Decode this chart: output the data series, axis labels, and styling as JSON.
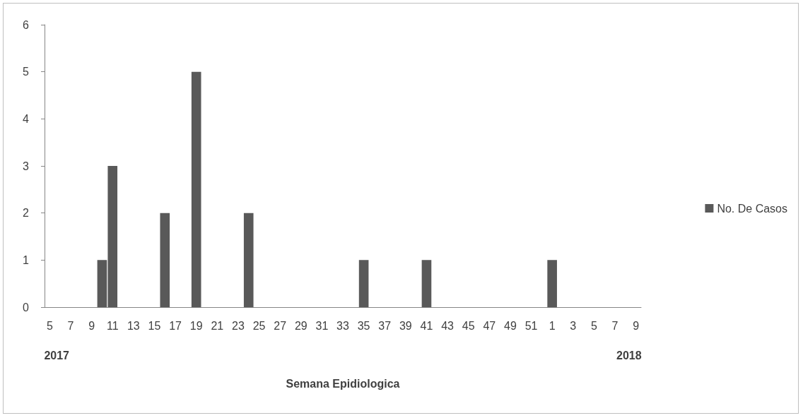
{
  "chart_data": {
    "type": "bar",
    "xlabel": "Semana Epidiologica",
    "categories": [
      "5",
      null,
      "7",
      null,
      "9",
      null,
      "11",
      null,
      "13",
      null,
      "15",
      null,
      "17",
      null,
      "19",
      null,
      "21",
      null,
      "23",
      null,
      "25",
      null,
      "27",
      null,
      "29",
      null,
      "31",
      null,
      "33",
      null,
      "35",
      null,
      "37",
      null,
      "39",
      null,
      "41",
      null,
      "43",
      null,
      "45",
      null,
      "47",
      null,
      "49",
      null,
      "51",
      null,
      "1",
      null,
      "3",
      null,
      "5",
      null,
      "7",
      null,
      "9"
    ],
    "series": [
      {
        "name": "No. De Casos",
        "color": "#595959",
        "values": [
          0,
          0,
          0,
          0,
          0,
          1,
          3,
          0,
          0,
          0,
          0,
          2,
          0,
          0,
          5,
          0,
          0,
          0,
          0,
          2,
          0,
          0,
          0,
          0,
          0,
          0,
          0,
          0,
          0,
          0,
          1,
          0,
          0,
          0,
          0,
          0,
          1,
          0,
          0,
          0,
          0,
          0,
          0,
          0,
          0,
          0,
          0,
          0,
          1,
          0,
          0,
          0,
          0,
          0,
          0,
          0,
          0
        ]
      }
    ],
    "ylim": [
      0,
      6
    ],
    "yticks": [
      0,
      1,
      2,
      3,
      4,
      5,
      6
    ],
    "grid": false,
    "legend": "right",
    "annotations": [
      "2017",
      "2018"
    ]
  }
}
